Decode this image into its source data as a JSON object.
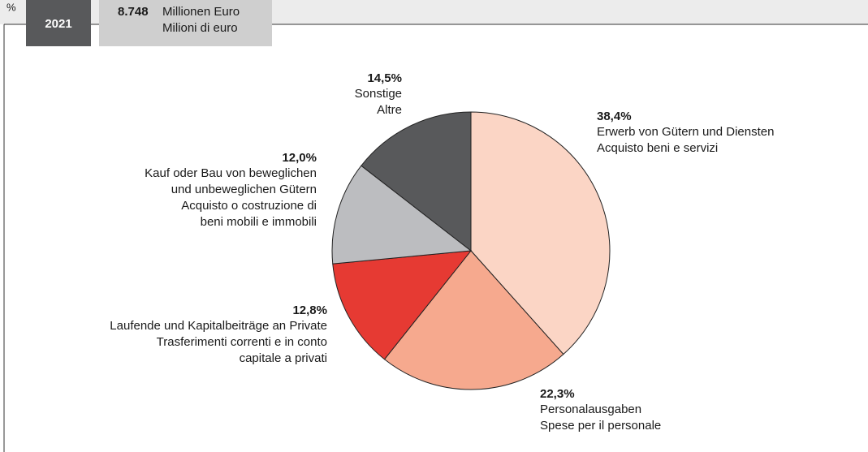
{
  "header": {
    "unit_symbol": "%",
    "year": "2021",
    "total": "8.748",
    "unit_lines": [
      "Millionen Euro",
      "Milioni di euro"
    ]
  },
  "chart_data": {
    "type": "pie",
    "values": [
      38.4,
      22.3,
      12.8,
      12.0,
      14.5
    ],
    "value_labels": [
      "38,4%",
      "22,3%",
      "12,8%",
      "12,0%",
      "14,5%"
    ],
    "labels": [
      [
        "Erwerb von Gütern und Diensten",
        "Acquisto beni e servizi"
      ],
      [
        "Personalausgaben",
        "Spese per il personale"
      ],
      [
        "Laufende und Kapitalbeiträge an Private",
        "Trasferimenti correnti e in conto",
        "capitale a privati"
      ],
      [
        "Kauf oder Bau von beweglichen",
        "und unbeweglichen Gütern",
        "Acquisto o costruzione di",
        "beni mobili e immobili"
      ],
      [
        "Sonstige",
        "Altre"
      ]
    ],
    "colors": [
      "#fbd5c5",
      "#f6a98e",
      "#e63a33",
      "#bcbdc0",
      "#58595b"
    ]
  }
}
